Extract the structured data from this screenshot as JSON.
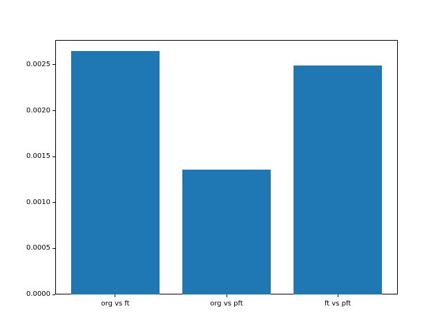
{
  "chart_data": {
    "type": "bar",
    "title": "",
    "xlabel": "",
    "ylabel": "",
    "categories": [
      "org vs ft",
      "org vs pft",
      "ft vs pft"
    ],
    "values": [
      0.00265,
      0.00136,
      0.00249
    ],
    "ylim": [
      0,
      0.00277
    ],
    "yticks": [
      0.0,
      0.0005,
      0.001,
      0.0015,
      0.002,
      0.0025
    ],
    "ytick_labels": [
      "0.0000",
      "0.0005",
      "0.0010",
      "0.0015",
      "0.0020",
      "0.0025"
    ],
    "grid": false,
    "legend": null,
    "bar_color": "#1f77b4",
    "spine_color": "#000000",
    "background_color": "#ffffff",
    "bar_width_fraction": 0.26,
    "bar_center_fractions": [
      0.1754,
      0.5,
      0.8246
    ]
  }
}
